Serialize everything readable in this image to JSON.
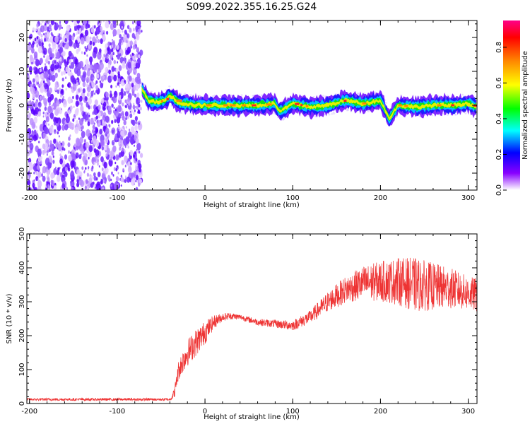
{
  "chart_data": [
    {
      "type": "heatmap",
      "title": "S099.2022.355.16.25.G24",
      "xlabel": "Height of straight line (km)",
      "ylabel": "Frequency (Hz)",
      "xlim": [
        -203,
        310
      ],
      "ylim": [
        -25,
        25
      ],
      "xticks": [
        -200,
        -100,
        0,
        100,
        200,
        300
      ],
      "yticks": [
        -20,
        -10,
        0,
        10,
        20
      ],
      "noise_region_x": [
        -203,
        -72
      ],
      "signal_start_x": -72,
      "colorbar": {
        "label": "Normalized spectral amplitude",
        "range": [
          0,
          0.95
        ],
        "ticks": [
          "0.0",
          "0.2",
          "0.4",
          "0.6",
          "0.8"
        ],
        "colors": [
          "#ffffff",
          "#8800ff",
          "#0000ff",
          "#00ffff",
          "#00ff00",
          "#ffff00",
          "#ff8800",
          "#ff0000",
          "#ff0088"
        ]
      },
      "ridge": {
        "x": [
          -72,
          -65,
          -55,
          -45,
          -40,
          -30,
          -10,
          0,
          20,
          40,
          60,
          80,
          85,
          100,
          120,
          140,
          160,
          180,
          200,
          210,
          220,
          240,
          260,
          280,
          300,
          310
        ],
        "y": [
          5,
          1.5,
          0.8,
          1.5,
          3,
          0.8,
          0,
          0,
          0,
          0,
          0,
          0.5,
          -2,
          0.5,
          -0.5,
          0,
          1.5,
          0.5,
          1.5,
          -4,
          0,
          -0.5,
          0,
          0,
          0.5,
          -0.5
        ]
      }
    },
    {
      "type": "line",
      "title": "",
      "xlabel": "Height of straight line (km)",
      "ylabel": "SNR (10 * v/v)",
      "xlim": [
        -203,
        310
      ],
      "ylim": [
        0,
        500
      ],
      "xticks": [
        -200,
        -100,
        0,
        100,
        200,
        300
      ],
      "yticks": [
        0,
        100,
        200,
        300,
        400,
        500
      ],
      "series": [
        {
          "color": "#ee3333",
          "x": [
            -203,
            -40,
            -35,
            -30,
            -20,
            -10,
            0,
            10,
            20,
            30,
            40,
            60,
            80,
            100,
            120,
            140,
            160,
            180,
            200,
            220,
            240,
            260,
            280,
            300,
            310
          ],
          "y": [
            12,
            12,
            30,
            100,
            150,
            180,
            210,
            240,
            255,
            258,
            255,
            240,
            235,
            230,
            255,
            300,
            335,
            355,
            360,
            360,
            350,
            345,
            340,
            325,
            320
          ],
          "noise_amplitude": [
            4,
            4,
            15,
            30,
            40,
            40,
            35,
            20,
            12,
            10,
            8,
            10,
            12,
            15,
            20,
            30,
            40,
            50,
            60,
            70,
            80,
            70,
            60,
            50,
            50
          ]
        }
      ]
    }
  ]
}
